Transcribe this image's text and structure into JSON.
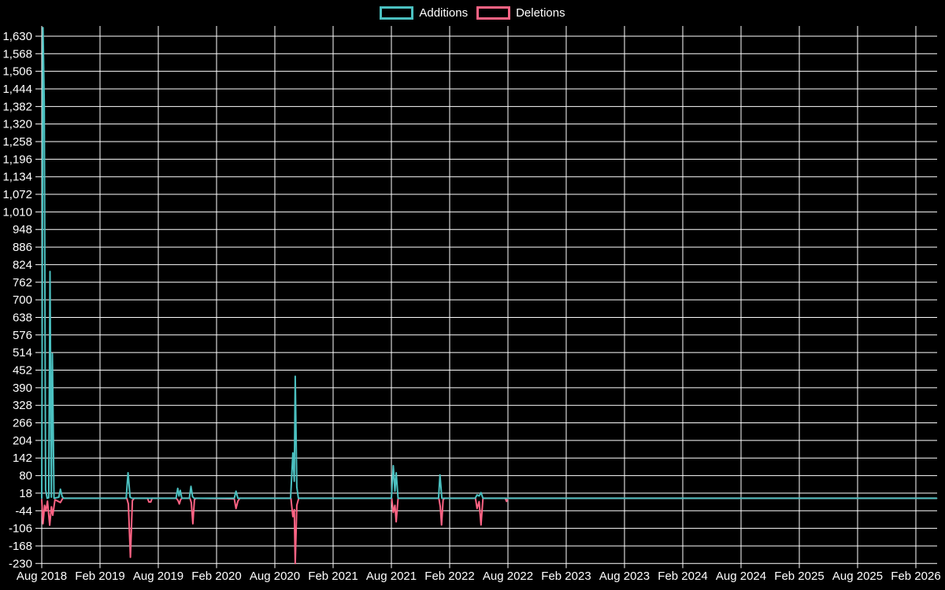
{
  "legend": {
    "items": [
      {
        "label": "Additions",
        "color": "#4bc0c0"
      },
      {
        "label": "Deletions",
        "color": "#ff6384"
      }
    ]
  },
  "chart_data": {
    "type": "line",
    "title": "",
    "background_color": "#000000",
    "grid_color": "#ffffff",
    "text_color": "#ffffff",
    "grid": true,
    "legend_position": "top-center",
    "x_axis": {
      "tick_labels": [
        "Aug 2018",
        "Feb 2019",
        "Aug 2019",
        "Feb 2020",
        "Aug 2020",
        "Feb 2021",
        "Aug 2021",
        "Feb 2022",
        "Aug 2022",
        "Feb 2023",
        "Aug 2023",
        "Feb 2024",
        "Aug 2024",
        "Feb 2025",
        "Aug 2025",
        "Feb 2026"
      ],
      "start_date": "2018-08-01",
      "end_date": "2026-04-05",
      "months_per_tick": 6
    },
    "y_axis": {
      "tick_labels": [
        "-230",
        "-168",
        "-106",
        "-44",
        "18",
        "80",
        "142",
        "204",
        "266",
        "328",
        "390",
        "452",
        "514",
        "576",
        "638",
        "700",
        "762",
        "824",
        "886",
        "948",
        "1,010",
        "1,072",
        "1,134",
        "1,196",
        "1,258",
        "1,320",
        "1,382",
        "1,444",
        "1,506",
        "1,568",
        "1,630"
      ],
      "tick_min": -230,
      "tick_max": 1630,
      "tick_step": 62
    },
    "series": [
      {
        "name": "Additions",
        "color": "#4bc0c0",
        "points": [
          [
            "2018-08-01",
            0
          ],
          [
            "2018-08-05",
            1660
          ],
          [
            "2018-08-09",
            1390
          ],
          [
            "2018-08-13",
            30
          ],
          [
            "2018-08-18",
            0
          ],
          [
            "2018-08-23",
            2
          ],
          [
            "2018-08-27",
            800
          ],
          [
            "2018-08-31",
            4
          ],
          [
            "2018-09-04",
            510
          ],
          [
            "2018-09-09",
            0
          ],
          [
            "2018-09-24",
            4
          ],
          [
            "2018-09-29",
            32
          ],
          [
            "2018-10-04",
            6
          ],
          [
            "2018-10-09",
            0
          ],
          [
            "2019-04-22",
            0
          ],
          [
            "2019-04-28",
            90
          ],
          [
            "2019-05-04",
            4
          ],
          [
            "2019-05-10",
            0
          ],
          [
            "2019-09-26",
            0
          ],
          [
            "2019-10-01",
            35
          ],
          [
            "2019-10-05",
            8
          ],
          [
            "2019-10-09",
            28
          ],
          [
            "2019-10-14",
            0
          ],
          [
            "2019-11-07",
            0
          ],
          [
            "2019-11-12",
            42
          ],
          [
            "2019-11-17",
            6
          ],
          [
            "2019-11-22",
            0
          ],
          [
            "2020-03-26",
            0
          ],
          [
            "2020-04-01",
            25
          ],
          [
            "2020-04-07",
            0
          ],
          [
            "2020-09-20",
            0
          ],
          [
            "2020-09-27",
            160
          ],
          [
            "2020-10-01",
            60
          ],
          [
            "2020-10-04",
            430
          ],
          [
            "2020-10-09",
            40
          ],
          [
            "2020-10-14",
            0
          ],
          [
            "2021-08-01",
            0
          ],
          [
            "2021-08-07",
            115
          ],
          [
            "2021-08-12",
            25
          ],
          [
            "2021-08-16",
            90
          ],
          [
            "2021-08-22",
            0
          ],
          [
            "2021-12-27",
            0
          ],
          [
            "2022-01-01",
            82
          ],
          [
            "2022-01-07",
            0
          ],
          [
            "2022-04-20",
            0
          ],
          [
            "2022-04-26",
            12
          ],
          [
            "2022-05-02",
            8
          ],
          [
            "2022-05-08",
            20
          ],
          [
            "2022-05-14",
            0
          ],
          [
            "2026-04-05",
            0
          ]
        ]
      },
      {
        "name": "Deletions",
        "color": "#ff6384",
        "points": [
          [
            "2018-08-01",
            -5
          ],
          [
            "2018-08-05",
            -90
          ],
          [
            "2018-08-10",
            -25
          ],
          [
            "2018-08-14",
            -45
          ],
          [
            "2018-08-19",
            -10
          ],
          [
            "2018-08-26",
            -95
          ],
          [
            "2018-09-01",
            -30
          ],
          [
            "2018-09-05",
            -60
          ],
          [
            "2018-09-12",
            -5
          ],
          [
            "2018-09-29",
            -15
          ],
          [
            "2018-10-06",
            0
          ],
          [
            "2019-04-24",
            0
          ],
          [
            "2019-04-29",
            -20
          ],
          [
            "2019-05-05",
            -208
          ],
          [
            "2019-05-11",
            -8
          ],
          [
            "2019-05-17",
            0
          ],
          [
            "2019-06-28",
            0
          ],
          [
            "2019-07-02",
            -13
          ],
          [
            "2019-07-08",
            -13
          ],
          [
            "2019-07-12",
            0
          ],
          [
            "2019-09-27",
            0
          ],
          [
            "2019-10-02",
            -8
          ],
          [
            "2019-10-06",
            -20
          ],
          [
            "2019-10-10",
            -5
          ],
          [
            "2019-10-14",
            0
          ],
          [
            "2019-11-09",
            0
          ],
          [
            "2019-11-13",
            -15
          ],
          [
            "2019-11-18",
            -90
          ],
          [
            "2019-11-23",
            -5
          ],
          [
            "2019-11-28",
            0
          ],
          [
            "2020-03-26",
            -2
          ],
          [
            "2020-04-01",
            -36
          ],
          [
            "2020-04-07",
            -10
          ],
          [
            "2020-04-13",
            0
          ],
          [
            "2020-09-21",
            0
          ],
          [
            "2020-09-27",
            -65
          ],
          [
            "2020-10-01",
            -40
          ],
          [
            "2020-10-04",
            -230
          ],
          [
            "2020-10-09",
            -25
          ],
          [
            "2020-10-15",
            0
          ],
          [
            "2021-08-02",
            0
          ],
          [
            "2021-08-07",
            -50
          ],
          [
            "2021-08-12",
            -25
          ],
          [
            "2021-08-16",
            -83
          ],
          [
            "2021-08-22",
            0
          ],
          [
            "2021-12-28",
            0
          ],
          [
            "2022-01-02",
            -30
          ],
          [
            "2022-01-06",
            -94
          ],
          [
            "2022-01-11",
            -5
          ],
          [
            "2022-01-16",
            0
          ],
          [
            "2022-04-21",
            0
          ],
          [
            "2022-04-26",
            -36
          ],
          [
            "2022-05-02",
            -12
          ],
          [
            "2022-05-08",
            -94
          ],
          [
            "2022-05-14",
            0
          ],
          [
            "2022-07-23",
            0
          ],
          [
            "2022-07-27",
            -11
          ],
          [
            "2022-08-01",
            0
          ],
          [
            "2026-04-05",
            0
          ]
        ]
      }
    ]
  }
}
